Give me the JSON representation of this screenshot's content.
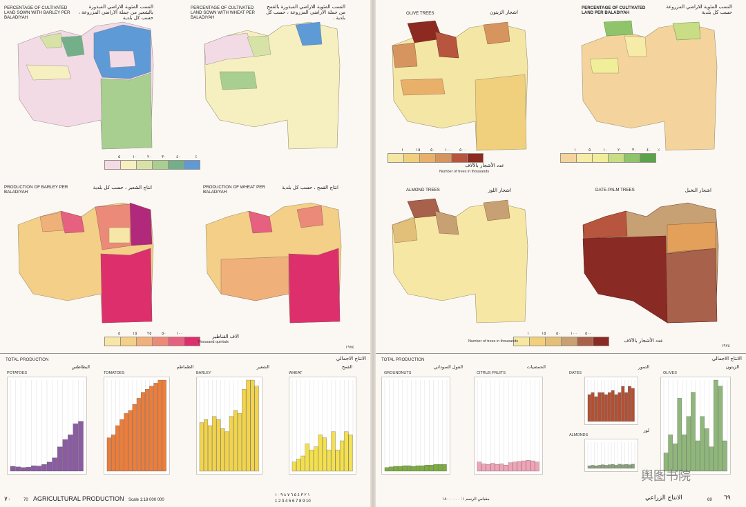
{
  "left_page": {
    "maps": [
      {
        "id": "barley_pct",
        "title_en": "PERCENTAGE OF CULTIVATED LAND SOWN WITH BARLEY PER BALADIYAH",
        "title_ar": "النسب المئوية للاراضي المبذورة بالشعير من جملة الاراضي المزروعة ، حسب كل بلدية"
      },
      {
        "id": "wheat_pct",
        "title_en": "PERCENTAGE OF CULTIVATED LAND SOWN WITH WHEAT PER BALADIYAH",
        "title_ar": "النسب المئوية للاراضي المبذورة بالقمح من جملة الاراضي المزروعة ، حسب كل بلدية ."
      },
      {
        "id": "barley_prod",
        "title_en": "PRODUCTION OF BARLEY PER BALADIYAH",
        "title_ar": "انتاج الشعير ، حسب كل بلدية"
      },
      {
        "id": "wheat_prod",
        "title_en": "PRODUCTION OF WHEAT PER BALADIYAH",
        "title_ar": "انتاج القمح ، حسب كل بلدية"
      }
    ],
    "legend_pct": {
      "labels": [
        "٥",
        "١٠",
        "٢٠",
        "٣٠",
        "٤٠"
      ],
      "colors": [
        "#f3dbe6",
        "#f6efc0",
        "#d7e3a6",
        "#a9cf90",
        "#73b08a",
        "#5e9ad6"
      ],
      "unit": "٪"
    },
    "legend_prod": {
      "labels": [
        "٥",
        "١٥",
        "٢٥",
        "٥٠",
        "١٠٠"
      ],
      "colors": [
        "#f6e7a6",
        "#f3cf87",
        "#efb07a",
        "#eb8a79",
        "#e6607f",
        "#de2f6d"
      ],
      "unit_ar": "الاف القناطير",
      "unit_en": "Thousand quintals"
    },
    "year": "١٩٧٤",
    "section": "TOTAL PRODUCTION",
    "charts": [
      {
        "name": "POTATOES",
        "ar": "البطاطس",
        "unit": "Thousand quintals",
        "color": "#8b5ca1"
      },
      {
        "name": "TOMATOES",
        "ar": "الطماطم",
        "unit": "Thousand quintals",
        "color": "#ec7d3b"
      },
      {
        "name": "BARLEY",
        "ar": "الشعير",
        "unit": "Thousand quintals",
        "color": "#f2d44c"
      },
      {
        "name": "WHEAT",
        "ar": "القمح",
        "unit": "Thousand quintals",
        "color": "#f4e04d"
      }
    ],
    "chart_heading_ar": "الانتاج الاجمالي",
    "yaxis_ar": [
      "١٥٠٠",
      "١٢٥٠",
      "١٠٠٠",
      "٧٥٠",
      "٥٠٠",
      "٢٥٠",
      "صفر"
    ],
    "year_ticks_left": [
      "١٩٦٢",
      "١٩٦٥",
      "١٩٧٠",
      "١٩٧٥"
    ],
    "footer_page": "٧٠",
    "footer_num": "70",
    "footer_title": "AGRICULTURAL PRODUCTION",
    "footer_scale": "Scale 1:18 000 000",
    "footer_ruler_top": "١ ٢ ٣ ٤ ٥ ٦ ٧ ٨ ٩ ١٠",
    "footer_ruler_bottom": "1 2 3 4 5 6 7 8 9 10"
  },
  "right_page": {
    "maps": [
      {
        "id": "olive",
        "title_en": "OLIVE TREES",
        "title_ar": "اشجار الزيتون"
      },
      {
        "id": "cult_pct",
        "title_en": "PERCENTAGE OF CULTIVATED LAND PER BALADIYAH",
        "title_ar": "النسب المئوية للاراضي المزروعة حسب كل بلدية"
      },
      {
        "id": "almond",
        "title_en": "ALMOND TREES",
        "title_ar": "اشجار اللوز"
      },
      {
        "id": "palm",
        "title_en": "DATE-PALM TREES",
        "title_ar": "اشجار النخيل"
      }
    ],
    "legend_trees": {
      "labels": [
        "١",
        "١٥",
        "٥٠",
        "١٠٠",
        "٥٠٠"
      ],
      "colors": [
        "#f4e6a5",
        "#f0cf7d",
        "#e9b06a",
        "#d6955e",
        "#b8553e",
        "#8c2a22"
      ],
      "unit_ar": "عدد الأشجار بالآلاف",
      "unit_en": "Number of trees in thousands"
    },
    "legend_cult": {
      "labels": [
        "١",
        "٥",
        "١٠",
        "٢٠",
        "٣٠",
        "٤٠"
      ],
      "colors": [
        "#f4d49c",
        "#f6eba7",
        "#f1ee9a",
        "#c8dd84",
        "#8fc46b",
        "#5ba24a"
      ],
      "unit": "٪"
    },
    "legend_trees2": {
      "labels": [
        "١",
        "١٥",
        "٥٠",
        "١٠٠",
        "٥٠٠"
      ],
      "colors": [
        "#f6e8a4",
        "#f0cf7d",
        "#e2c07a",
        "#c7a173",
        "#a8614a",
        "#8a2a24"
      ],
      "unit_ar": "عدد الأشجار بالآلاف",
      "unit_en": "Number of trees in thousands"
    },
    "year": "١٩٧٤",
    "section": "TOTAL PRODUCTION",
    "charts": [
      {
        "name": "GROUNDNUTS",
        "ar": "الفول السوداني",
        "unit": "Thousand quintals",
        "color": "#7cae3b"
      },
      {
        "name": "CITRUS FRUITS",
        "ar": "الحمضيات",
        "unit": "Thousand quintals",
        "color": "#f1a3b8"
      },
      {
        "name": "DATES",
        "ar": "التمور",
        "unit": "Thousand quintals",
        "color": "#b44f32"
      },
      {
        "name": "ALMONDS",
        "ar": "لوز",
        "unit": "Thousand quintals",
        "color": "#8aa47a"
      },
      {
        "name": "OLIVES",
        "ar": "الزيتون",
        "unit": "Thousand quintals",
        "color": "#8fb77a"
      }
    ],
    "chart_heading_ar": "الانتاج الاجمالي",
    "footer_page": "٦٩",
    "footer_num": "69",
    "footer_title_ar": "الانتاج الزراعي",
    "footer_scale_ar": "مقياس الرسم ١: ١٨٠٠٠٠٠٠",
    "watermark": "舆图书院"
  },
  "chart_data": [
    {
      "type": "bar",
      "title": "POTATOES",
      "unit": "Thousand quintals",
      "x": [
        1962,
        1963,
        1964,
        1965,
        1966,
        1967,
        1968,
        1969,
        1970,
        1971,
        1972,
        1973,
        1974,
        1975
      ],
      "values": [
        80,
        70,
        60,
        65,
        90,
        85,
        110,
        150,
        220,
        400,
        520,
        600,
        780,
        820
      ],
      "ylim": [
        0,
        1500
      ]
    },
    {
      "type": "bar",
      "title": "TOMATOES",
      "unit": "Thousand quintals",
      "x": [
        1962,
        1963,
        1964,
        1965,
        1966,
        1967,
        1968,
        1969,
        1970,
        1971,
        1972,
        1973,
        1974,
        1975
      ],
      "values": [
        550,
        600,
        750,
        850,
        950,
        1000,
        1100,
        1200,
        1300,
        1350,
        1400,
        1450,
        1500,
        1500
      ],
      "ylim": [
        0,
        1500
      ]
    },
    {
      "type": "bar",
      "title": "BARLEY",
      "unit": "Thousand quintals",
      "x": [
        1962,
        1963,
        1964,
        1965,
        1966,
        1967,
        1968,
        1969,
        1970,
        1971,
        1972,
        1973,
        1974,
        1975
      ],
      "values": [
        800,
        850,
        750,
        900,
        850,
        700,
        650,
        900,
        1000,
        950,
        1350,
        1500,
        1500,
        1400
      ],
      "ylim": [
        0,
        1500
      ]
    },
    {
      "type": "bar",
      "title": "WHEAT",
      "unit": "Thousand quintals",
      "x": [
        1962,
        1963,
        1964,
        1965,
        1966,
        1967,
        1968,
        1969,
        1970,
        1971,
        1972,
        1973,
        1974,
        1975
      ],
      "values": [
        150,
        200,
        250,
        450,
        350,
        400,
        600,
        550,
        350,
        650,
        350,
        500,
        650,
        600
      ],
      "ylim": [
        0,
        1500
      ]
    },
    {
      "type": "bar",
      "title": "GROUNDNUTS",
      "unit": "Thousand quintals",
      "x": [
        1962,
        1963,
        1964,
        1965,
        1966,
        1967,
        1968,
        1969,
        1970,
        1971,
        1972,
        1973,
        1974,
        1975
      ],
      "values": [
        60,
        70,
        80,
        80,
        90,
        90,
        80,
        90,
        90,
        100,
        100,
        110,
        110,
        110
      ],
      "ylim": [
        0,
        1500
      ]
    },
    {
      "type": "bar",
      "title": "CITRUS FRUITS",
      "unit": "Thousand quintals",
      "x": [
        1962,
        1963,
        1964,
        1965,
        1966,
        1967,
        1968,
        1969,
        1970,
        1971,
        1972,
        1973,
        1974,
        1975
      ],
      "values": [
        150,
        120,
        110,
        130,
        110,
        120,
        100,
        140,
        150,
        160,
        170,
        180,
        170,
        150
      ],
      "ylim": [
        0,
        1500
      ]
    },
    {
      "type": "bar",
      "title": "DATES",
      "unit": "Thousand quintals",
      "x": [
        1962,
        1963,
        1964,
        1965,
        1966,
        1967,
        1968,
        1969,
        1970,
        1971,
        1972,
        1973,
        1974,
        1975
      ],
      "values": [
        650,
        700,
        600,
        700,
        700,
        650,
        700,
        750,
        650,
        700,
        850,
        700,
        850,
        800
      ],
      "ylim": [
        0,
        1000
      ]
    },
    {
      "type": "bar",
      "title": "ALMONDS",
      "unit": "Thousand quintals",
      "x": [
        1962,
        1963,
        1964,
        1965,
        1966,
        1967,
        1968,
        1969,
        1970,
        1971,
        1972,
        1973,
        1974,
        1975
      ],
      "values": [
        10,
        12,
        10,
        12,
        14,
        12,
        14,
        15,
        12,
        16,
        14,
        15,
        14,
        16
      ],
      "ylim": [
        0,
        100
      ]
    },
    {
      "type": "bar",
      "title": "OLIVES",
      "unit": "Thousand quintals",
      "x": [
        1962,
        1963,
        1964,
        1965,
        1966,
        1967,
        1968,
        1969,
        1970,
        1971,
        1972,
        1973,
        1974,
        1975
      ],
      "values": [
        300,
        600,
        450,
        1200,
        600,
        900,
        1300,
        500,
        900,
        700,
        400,
        1500,
        1400,
        500
      ],
      "ylim": [
        0,
        1500
      ]
    }
  ]
}
